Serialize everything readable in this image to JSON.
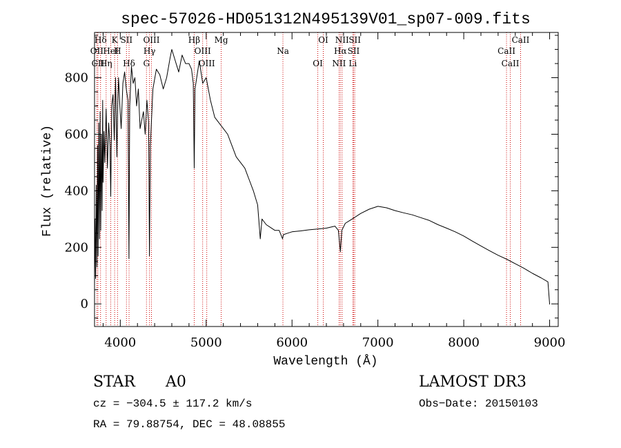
{
  "chart_data": {
    "type": "line",
    "title": "spec-57026-HD051312N495139V01_sp07-009.fits",
    "xlabel": "Wavelength (Å)",
    "ylabel": "Flux (relative)",
    "xlim": [
      3700,
      9100
    ],
    "ylim": [
      -80,
      960
    ],
    "xticks": [
      4000,
      5000,
      6000,
      7000,
      8000,
      9000
    ],
    "yticks": [
      0,
      200,
      400,
      600,
      800
    ],
    "grid": false,
    "legend": "none",
    "line_color": "#000000",
    "marker_color": "#cc0000",
    "series": [
      {
        "x": [
          3700,
          3705,
          3712,
          3720,
          3728,
          3735,
          3742,
          3750,
          3758,
          3765,
          3772,
          3780,
          3788,
          3795,
          3800,
          3810,
          3820,
          3835,
          3850,
          3865,
          3880,
          3889,
          3900,
          3915,
          3930,
          3945,
          3960,
          3970,
          3980,
          3995,
          4010,
          4030,
          4050,
          4070,
          4090,
          4101,
          4110,
          4130,
          4150,
          4170,
          4190,
          4210,
          4230,
          4250,
          4270,
          4290,
          4310,
          4330,
          4340,
          4350,
          4380,
          4420,
          4460,
          4500,
          4540,
          4580,
          4600,
          4640,
          4680,
          4720,
          4760,
          4800,
          4830,
          4850,
          4861,
          4870,
          4890,
          4920,
          4960,
          5000,
          5050,
          5100,
          5150,
          5200,
          5250,
          5300,
          5350,
          5400,
          5450,
          5500,
          5550,
          5600,
          5630,
          5650,
          5700,
          5750,
          5800,
          5850,
          5890,
          5900,
          5950,
          6000,
          6100,
          6200,
          6300,
          6400,
          6500,
          6540,
          6563,
          6580,
          6620,
          6700,
          6800,
          6900,
          7000,
          7100,
          7200,
          7300,
          7400,
          7500,
          7600,
          7700,
          7800,
          7900,
          8000,
          8100,
          8200,
          8300,
          8400,
          8500,
          8600,
          8700,
          8800,
          8900,
          8980,
          9000
        ],
        "y": [
          60,
          300,
          90,
          420,
          130,
          560,
          170,
          640,
          230,
          680,
          260,
          600,
          330,
          720,
          430,
          610,
          500,
          690,
          480,
          640,
          560,
          380,
          700,
          740,
          580,
          800,
          520,
          700,
          800,
          700,
          620,
          780,
          820,
          760,
          720,
          160,
          700,
          840,
          780,
          800,
          700,
          760,
          620,
          650,
          680,
          600,
          720,
          640,
          170,
          560,
          760,
          830,
          810,
          760,
          800,
          870,
          900,
          860,
          820,
          880,
          850,
          850,
          830,
          780,
          480,
          760,
          800,
          860,
          780,
          800,
          720,
          660,
          640,
          620,
          600,
          560,
          520,
          500,
          480,
          440,
          400,
          350,
          230,
          300,
          280,
          270,
          260,
          260,
          230,
          245,
          250,
          255,
          258,
          262,
          265,
          268,
          275,
          260,
          185,
          260,
          285,
          300,
          320,
          335,
          345,
          340,
          330,
          322,
          315,
          305,
          295,
          280,
          268,
          255,
          240,
          222,
          205,
          188,
          172,
          158,
          142,
          126,
          108,
          92,
          78,
          -2
        ]
      }
    ],
    "spectral_lines": [
      {
        "label": "Hδ",
        "wavelength": 3770
      },
      {
        "label": "OII",
        "wavelength": 3727
      },
      {
        "label": "CII",
        "wavelength": 3740
      },
      {
        "label": "K",
        "wavelength": 3934
      },
      {
        "label": "HeI",
        "wavelength": 3889
      },
      {
        "label": "Hη",
        "wavelength": 3835
      },
      {
        "label": "SII",
        "wavelength": 4072
      },
      {
        "label": "H",
        "wavelength": 3968
      },
      {
        "label": "Hδ",
        "wavelength": 4102
      },
      {
        "label": "OIII",
        "wavelength": 4363
      },
      {
        "label": "Hγ",
        "wavelength": 4340
      },
      {
        "label": "G",
        "wavelength": 4305
      },
      {
        "label": "Hβ",
        "wavelength": 4861
      },
      {
        "label": "OIII",
        "wavelength": 4959
      },
      {
        "label": "OIII",
        "wavelength": 5007
      },
      {
        "label": "Mg",
        "wavelength": 5175
      },
      {
        "label": "Na",
        "wavelength": 5894
      },
      {
        "label": "OI",
        "wavelength": 6300
      },
      {
        "label": "OI",
        "wavelength": 6364
      },
      {
        "label": "Hα",
        "wavelength": 6563
      },
      {
        "label": "NII",
        "wavelength": 6548
      },
      {
        "label": "NII",
        "wavelength": 6583
      },
      {
        "label": "SII",
        "wavelength": 6717
      },
      {
        "label": "Li",
        "wavelength": 6708
      },
      {
        "label": "SII",
        "wavelength": 6731
      },
      {
        "label": "CaII",
        "wavelength": 8498
      },
      {
        "label": "CaII",
        "wavelength": 8542
      },
      {
        "label": "CaII",
        "wavelength": 8662
      }
    ]
  },
  "info": {
    "object_type": "STAR",
    "spectral_class": "A0",
    "survey": "LAMOST DR3",
    "redshift_line": "cz = −304.5 ± 117.2 km/s",
    "obs_date_line": "Obs−Date: 20150103",
    "coords_line": "RA =  79.88754, DEC =  48.08855"
  }
}
